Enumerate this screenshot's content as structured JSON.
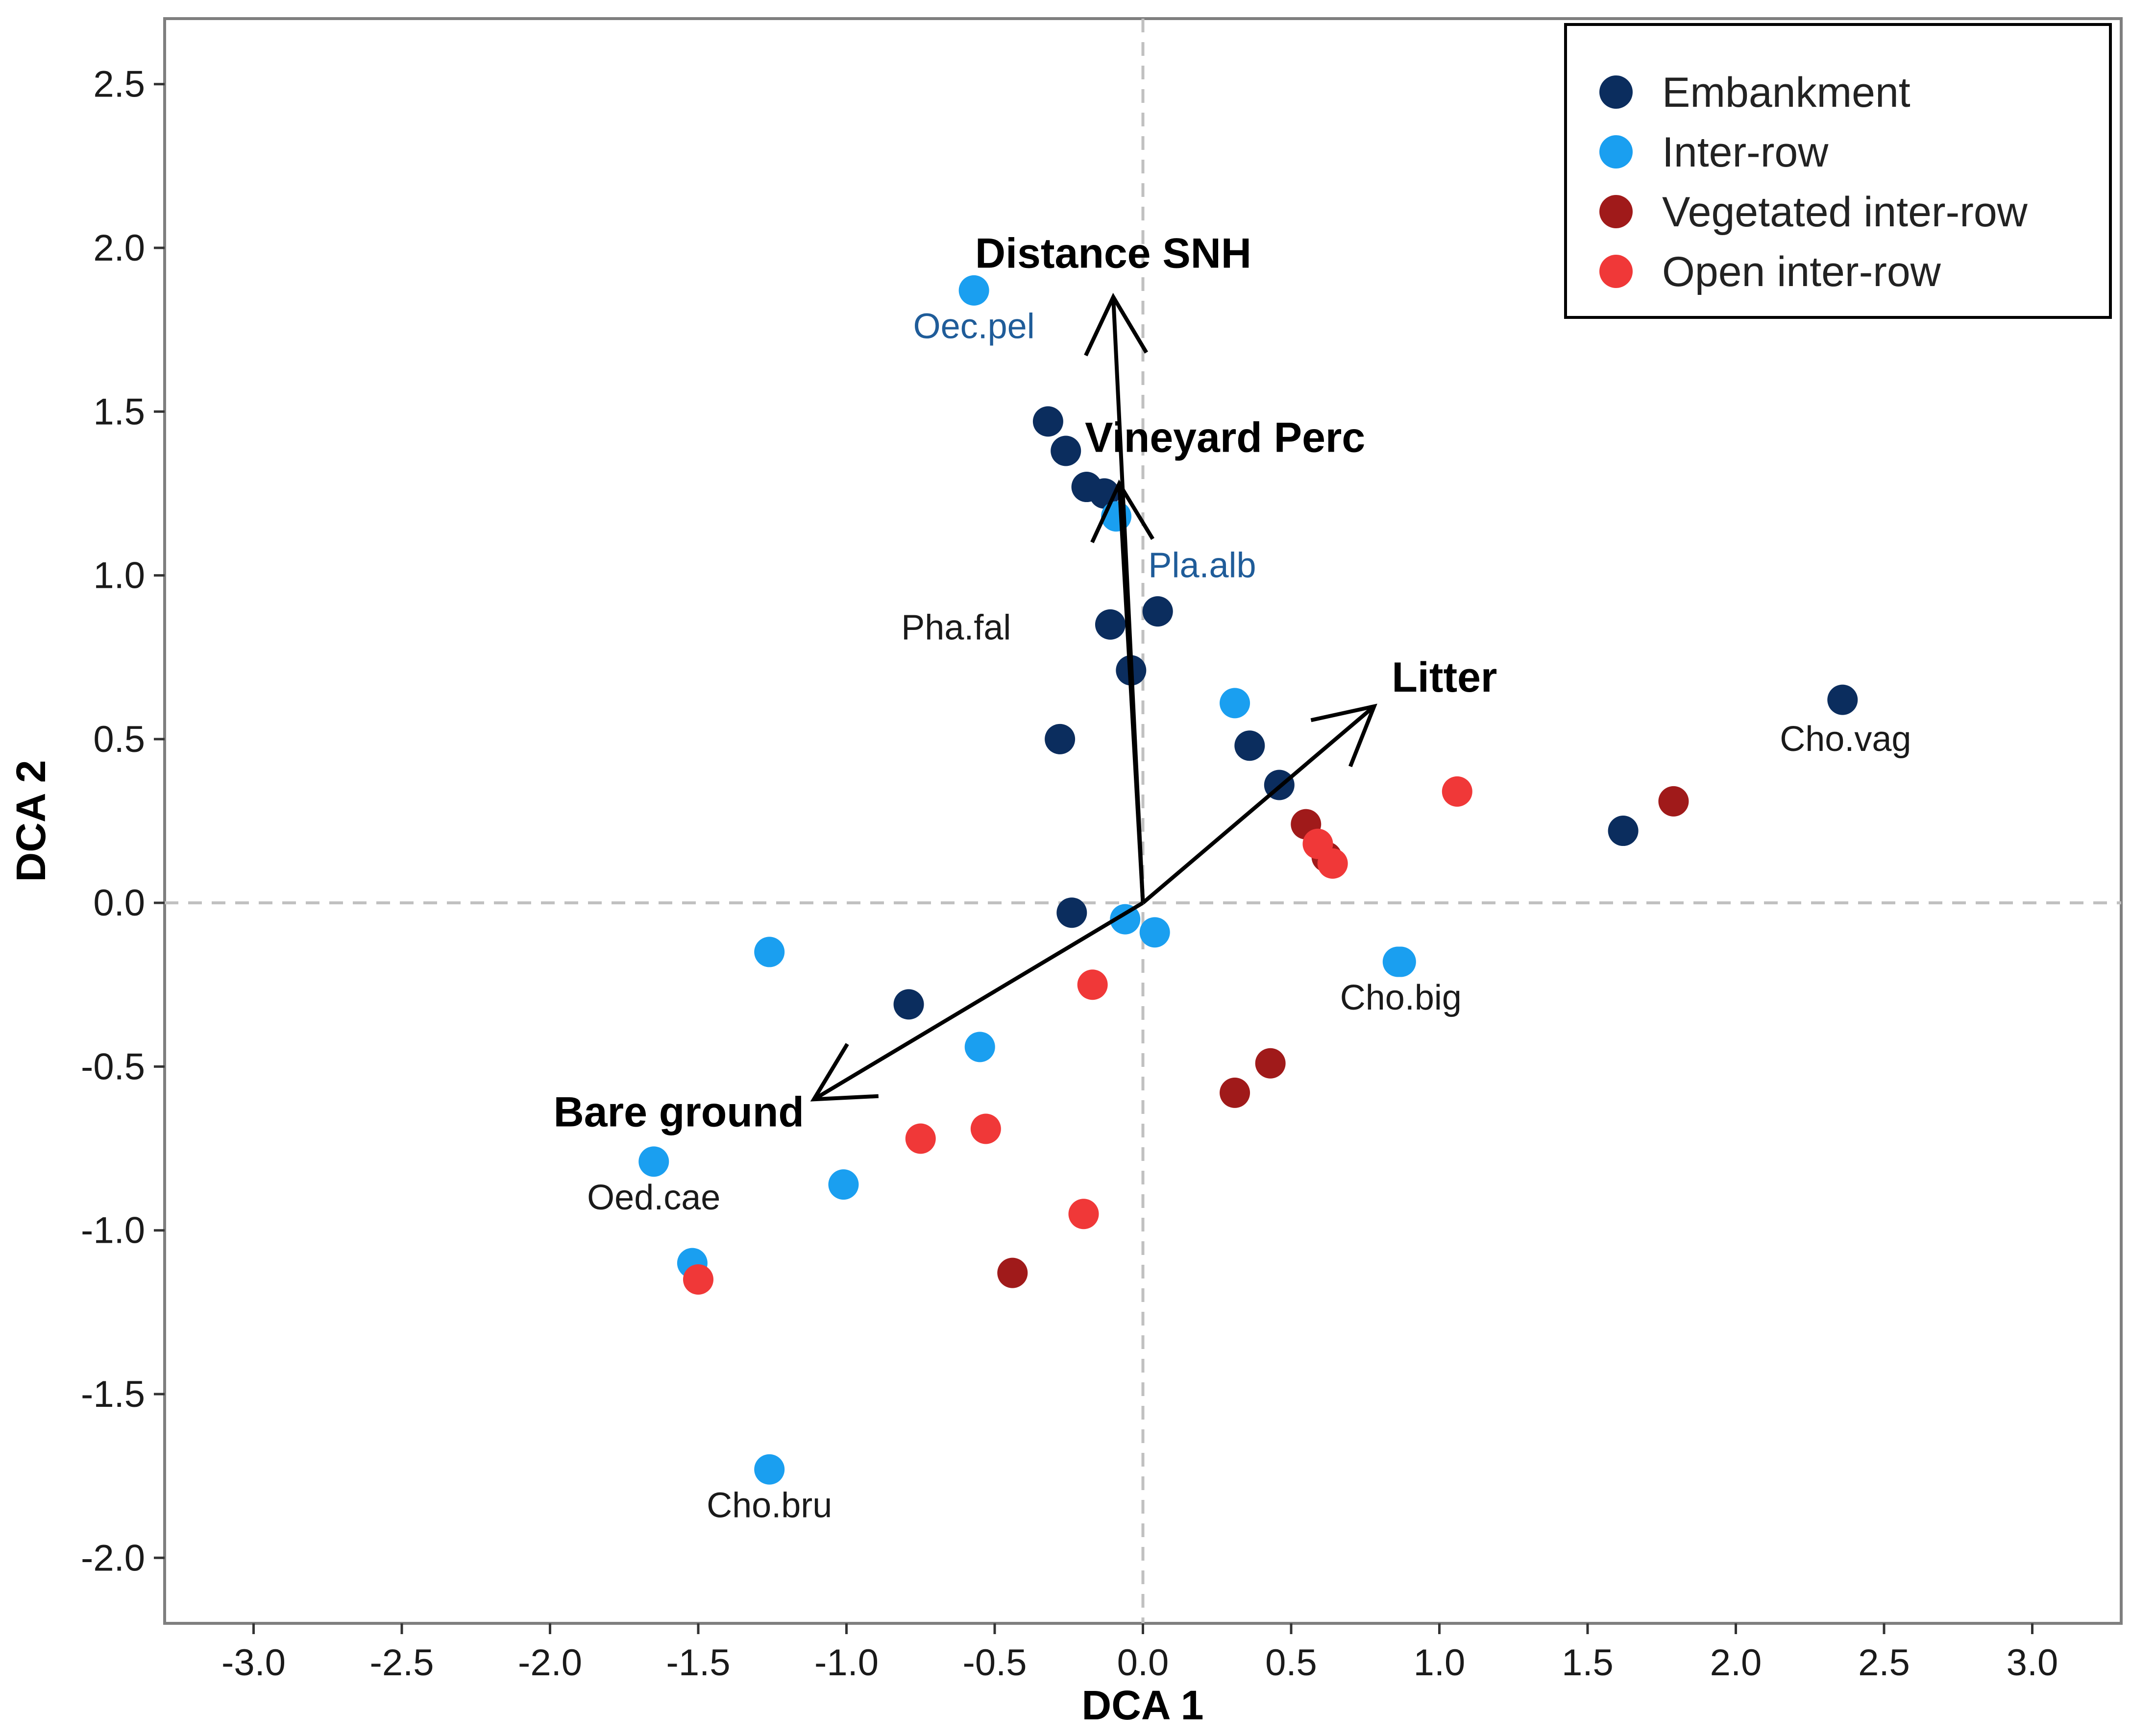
{
  "chart_data": {
    "type": "scatter",
    "xlabel": "DCA 1",
    "ylabel": "DCA 2",
    "xlim": [
      -3.3,
      3.3
    ],
    "ylim": [
      -2.2,
      2.7
    ],
    "x_ticks": [
      {
        "value": -3.0,
        "label": "-3.0"
      },
      {
        "value": -2.5,
        "label": "-2.5"
      },
      {
        "value": -2.0,
        "label": "-2.0"
      },
      {
        "value": -1.5,
        "label": "-1.5"
      },
      {
        "value": -1.0,
        "label": "-1.0"
      },
      {
        "value": -0.5,
        "label": "-0.5"
      },
      {
        "value": 0.0,
        "label": "0.0"
      },
      {
        "value": 0.5,
        "label": "0.5"
      },
      {
        "value": 1.0,
        "label": "1.0"
      },
      {
        "value": 1.5,
        "label": "1.5"
      },
      {
        "value": 2.0,
        "label": "2.0"
      },
      {
        "value": 2.5,
        "label": "2.5"
      },
      {
        "value": 3.0,
        "label": "3.0"
      }
    ],
    "y_ticks": [
      {
        "value": 2.5,
        "label": "2.5"
      },
      {
        "value": 2.0,
        "label": "2.0"
      },
      {
        "value": 1.5,
        "label": "1.5"
      },
      {
        "value": 1.0,
        "label": "1.0"
      },
      {
        "value": 0.5,
        "label": "0.5"
      },
      {
        "value": 0.0,
        "label": "0.0"
      },
      {
        "value": -0.5,
        "label": "-0.5"
      },
      {
        "value": -1.0,
        "label": "-1.0"
      },
      {
        "value": -1.5,
        "label": "-1.5"
      },
      {
        "value": -2.0,
        "label": "-2.0"
      }
    ],
    "grid": false,
    "reference_lines": {
      "x": 0,
      "y": 0,
      "style": "dashed"
    },
    "legend_position": "top-right",
    "series": [
      {
        "name": "Embankment",
        "color": "#0b2d5e",
        "points": [
          {
            "x": -0.32,
            "y": 1.47
          },
          {
            "x": -0.26,
            "y": 1.38
          },
          {
            "x": -0.19,
            "y": 1.27
          },
          {
            "x": -0.13,
            "y": 1.25
          },
          {
            "x": 0.05,
            "y": 0.89
          },
          {
            "x": -0.11,
            "y": 0.85
          },
          {
            "x": -0.04,
            "y": 0.71
          },
          {
            "x": -0.28,
            "y": 0.5
          },
          {
            "x": 0.36,
            "y": 0.48
          },
          {
            "x": 0.46,
            "y": 0.36
          },
          {
            "x": 1.62,
            "y": 0.22
          },
          {
            "x": 2.36,
            "y": 0.62
          },
          {
            "x": -0.24,
            "y": -0.03
          },
          {
            "x": -0.79,
            "y": -0.31
          }
        ]
      },
      {
        "name": "Inter-row",
        "color": "#1a9ff0",
        "points": [
          {
            "x": -0.57,
            "y": 1.87
          },
          {
            "x": -0.09,
            "y": 1.18
          },
          {
            "x": 0.31,
            "y": 0.61
          },
          {
            "x": -0.06,
            "y": -0.05
          },
          {
            "x": 0.04,
            "y": -0.09
          },
          {
            "x": -1.26,
            "y": -0.15
          },
          {
            "x": 0.86,
            "y": -0.18
          },
          {
            "x": 0.87,
            "y": -0.18
          },
          {
            "x": -0.55,
            "y": -0.44
          },
          {
            "x": -1.65,
            "y": -0.79
          },
          {
            "x": -1.01,
            "y": -0.86
          },
          {
            "x": -1.52,
            "y": -1.1
          },
          {
            "x": -1.26,
            "y": -1.73
          }
        ]
      },
      {
        "name": "Vegetated inter-row",
        "color": "#a01a1a",
        "points": [
          {
            "x": 1.79,
            "y": 0.31
          },
          {
            "x": 0.55,
            "y": 0.24
          },
          {
            "x": 0.62,
            "y": 0.14
          },
          {
            "x": 0.43,
            "y": -0.49
          },
          {
            "x": 0.31,
            "y": -0.58
          },
          {
            "x": -0.44,
            "y": -1.13
          }
        ]
      },
      {
        "name": "Open inter-row",
        "color": "#f03838",
        "points": [
          {
            "x": 1.06,
            "y": 0.34
          },
          {
            "x": 0.59,
            "y": 0.18
          },
          {
            "x": 0.64,
            "y": 0.12
          },
          {
            "x": -0.17,
            "y": -0.25
          },
          {
            "x": -0.53,
            "y": -0.69
          },
          {
            "x": -0.75,
            "y": -0.72
          },
          {
            "x": -0.2,
            "y": -0.95
          },
          {
            "x": -1.5,
            "y": -1.15
          }
        ]
      }
    ],
    "vectors": [
      {
        "label": "Distance SNH",
        "x": -0.1,
        "y": 1.85
      },
      {
        "label": "Vineyard Perc",
        "x": -0.08,
        "y": 1.28
      },
      {
        "label": "Litter",
        "x": 0.78,
        "y": 0.6
      },
      {
        "label": "Bare ground",
        "x": -1.11,
        "y": -0.6
      }
    ],
    "species_labels": [
      {
        "label": "Oec.pel",
        "x": -0.57,
        "y": 1.76,
        "color": "#1f5c99"
      },
      {
        "label": "Pla.alb",
        "x": 0.2,
        "y": 1.03,
        "color": "#1f5c99"
      },
      {
        "label": "Pha.fal",
        "x": -0.63,
        "y": 0.84,
        "color": "#1a1a1a"
      },
      {
        "label": "Cho.vag",
        "x": 2.37,
        "y": 0.5,
        "color": "#1a1a1a"
      },
      {
        "label": "Cho.big",
        "x": 0.87,
        "y": -0.29,
        "color": "#1a1a1a"
      },
      {
        "label": "Oed.cae",
        "x": -1.65,
        "y": -0.9,
        "color": "#1a1a1a"
      },
      {
        "label": "Cho.bru",
        "x": -1.26,
        "y": -1.84,
        "color": "#1a1a1a"
      }
    ]
  }
}
